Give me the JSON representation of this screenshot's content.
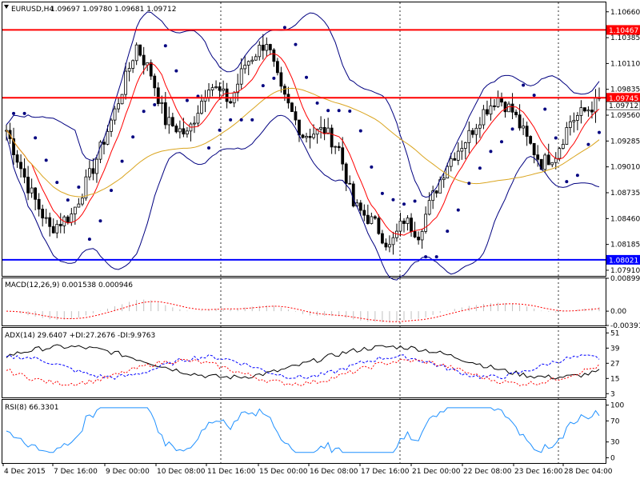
{
  "main": {
    "title": "EURUSD,H4",
    "ohlc": "1.09697 1.09780 1.09681 1.09712",
    "price_ticks": [
      "1.10660",
      "1.10385",
      "1.10110",
      "1.09835",
      "1.09560",
      "1.09285",
      "1.09010",
      "1.08735",
      "1.08460",
      "1.08185",
      "1.07910"
    ],
    "lines": [
      {
        "label": "1.10467",
        "color": "#ff0000"
      },
      {
        "label": "1.09745",
        "color": "#ff0000"
      },
      {
        "label": "1.08021",
        "color": "#0000ff"
      }
    ],
    "current_price": "1.09712"
  },
  "macd": {
    "title": "MACD(12,26,9) 0.001538 0.000946",
    "ticks": [
      "0.008991",
      "0.00",
      "-0.003912"
    ]
  },
  "adx": {
    "title": "ADX(14) 29.6407 +DI:27.2676 -DI:9.9763",
    "ticks": [
      "51",
      "39",
      "27",
      "15",
      "3"
    ]
  },
  "rsi": {
    "title": "RSI(8) 66.3301",
    "ticks": [
      "100",
      "70",
      "30",
      "0"
    ]
  },
  "time_axis": [
    "4 Dec 2015",
    "7 Dec 16:00",
    "9 Dec 00:00",
    "10 Dec 08:00",
    "11 Dec 16:00",
    "15 Dec 00:00",
    "16 Dec 08:00",
    "17 Dec 16:00",
    "21 Dec 00:00",
    "22 Dec 08:00",
    "23 Dec 16:00",
    "28 Dec 04:00"
  ],
  "colors": {
    "bb": "#000080",
    "ma_fast": "#ff0000",
    "ma_slow": "#daa520",
    "sar": "#000080",
    "adx_main": "#000000",
    "adx_plus": "#0000ff",
    "adx_minus": "#ff0000",
    "rsi": "#1e90ff",
    "macd_signal": "#ff0000"
  }
}
